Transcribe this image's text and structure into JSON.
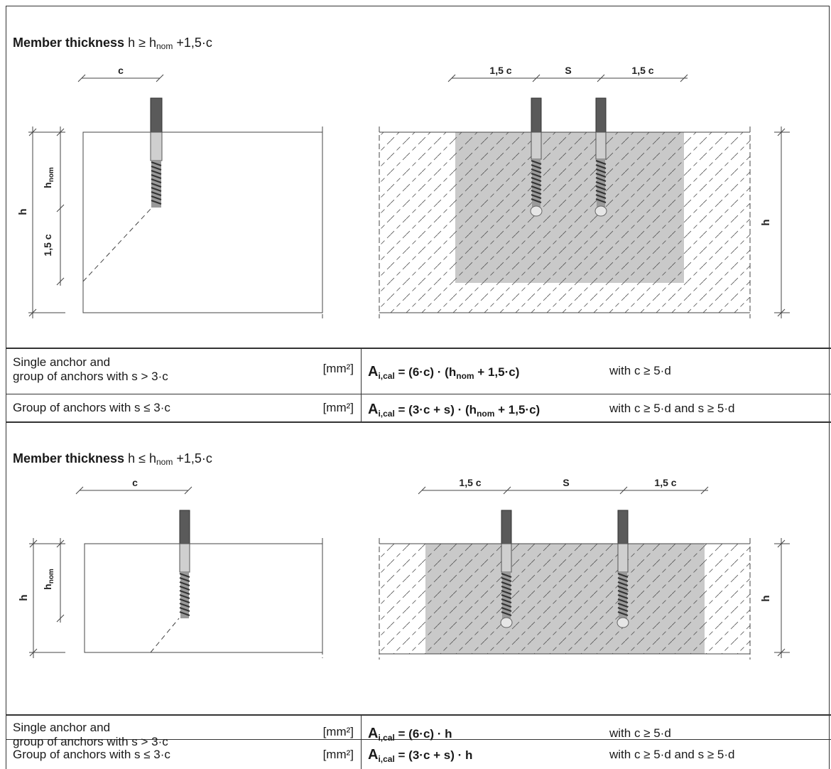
{
  "section1": {
    "title_bold": "Member thickness",
    "title_rest": "h ≥ h",
    "title_sub": "nom",
    "title_tail": " +1,5·c",
    "left": {
      "dim_top": "c",
      "dim_h": "h",
      "dim_hnom": "h",
      "dim_hnom_sub": "nom",
      "dim_15c": "1,5 c"
    },
    "right": {
      "dim_left": "1,5 c",
      "dim_s": "S",
      "dim_right": "1,5 c",
      "dim_h": "h"
    },
    "rows": [
      {
        "label_line1": "Single anchor and",
        "label_line2": "group of anchors with s > 3·c",
        "unit": "[mm²]",
        "formula_a": "A",
        "formula_sub": "i,cal",
        "formula_rest": " = (6·c) · (h",
        "formula_sub2": "nom",
        "formula_tail": " + 1,5·c)",
        "condition": "with c ≥ 5·d"
      },
      {
        "label_line1": "Group of anchors with s ≤ 3·c",
        "label_line2": "",
        "unit": "[mm²]",
        "formula_a": "A",
        "formula_sub": "i,cal",
        "formula_rest": " = (3·c + s) · (h",
        "formula_sub2": "nom",
        "formula_tail": " + 1,5·c)",
        "condition": "with c ≥ 5·d and s ≥ 5·d"
      }
    ]
  },
  "section2": {
    "title_bold": "Member thickness",
    "title_rest": "h ≤ h",
    "title_sub": "nom",
    "title_tail": " +1,5·c",
    "left": {
      "dim_top": "c",
      "dim_h": "h",
      "dim_hnom": "h",
      "dim_hnom_sub": "nom"
    },
    "right": {
      "dim_left": "1,5 c",
      "dim_s": "S",
      "dim_right": "1,5 c",
      "dim_h": "h"
    },
    "rows": [
      {
        "label_line1": "Single anchor and",
        "label_line2": "group of anchors with s > 3·c",
        "unit": "[mm²]",
        "formula_a": "A",
        "formula_sub": "i,cal",
        "formula_rest": " = (6·c) · h",
        "formula_sub2": "",
        "formula_tail": "",
        "condition": "with c ≥ 5·d"
      },
      {
        "label_line1": "Group of anchors with s ≤ 3·c",
        "label_line2": "",
        "unit": "[mm²]",
        "formula_a": "A",
        "formula_sub": "i,cal",
        "formula_rest": " = (3·c + s) · h",
        "formula_sub2": "",
        "formula_tail": "",
        "condition": "with c ≥ 5·d and s ≥ 5·d"
      }
    ]
  }
}
